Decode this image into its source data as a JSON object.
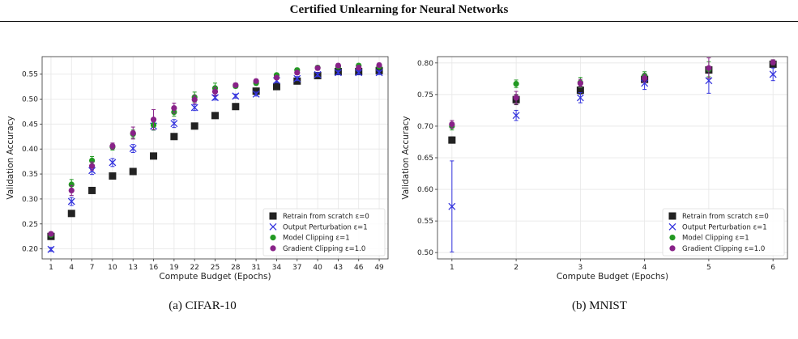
{
  "page": {
    "title": "Certified Unlearning for Neural Networks"
  },
  "captions": [
    "(a) CIFAR-10",
    "(b) MNIST"
  ],
  "chart_data": [
    {
      "type": "scatter",
      "panel": "a",
      "xlabel": "Compute Budget (Epochs)",
      "ylabel": "Validation Accuracy",
      "x": [
        1,
        4,
        7,
        10,
        13,
        16,
        19,
        22,
        25,
        28,
        31,
        34,
        37,
        40,
        43,
        46,
        49
      ],
      "xticks": [
        1,
        4,
        7,
        10,
        13,
        16,
        19,
        22,
        25,
        28,
        31,
        34,
        37,
        40,
        43,
        46,
        49
      ],
      "ylim": [
        0.18,
        0.585
      ],
      "yticks": [
        0.2,
        0.25,
        0.3,
        0.35,
        0.4,
        0.45,
        0.5,
        0.55
      ],
      "grid": true,
      "legend_position": "lower-right",
      "series": [
        {
          "name": "Retrain from scratch ε=0",
          "marker": "square",
          "color": "#222222",
          "values": [
            0.225,
            0.271,
            0.317,
            0.346,
            0.355,
            0.386,
            0.425,
            0.446,
            0.467,
            0.485,
            0.516,
            0.525,
            0.536,
            0.547,
            0.555,
            0.555,
            0.557
          ],
          "errors": [
            0.004,
            0.003,
            0.003,
            0.004,
            0.005,
            0.003,
            0.003,
            0.003,
            0.003,
            0.003,
            0.003,
            0.003,
            0.003,
            0.003,
            0.003,
            0.003,
            0.003
          ]
        },
        {
          "name": "Output Perturbation ε=1",
          "marker": "x",
          "color": "#3333dd",
          "values": [
            0.199,
            0.295,
            0.357,
            0.373,
            0.401,
            0.446,
            0.451,
            0.483,
            0.503,
            0.506,
            0.51,
            0.537,
            0.541,
            0.549,
            0.553,
            0.553,
            0.553
          ],
          "errors": [
            0.004,
            0.008,
            0.008,
            0.008,
            0.008,
            0.008,
            0.008,
            0.006,
            0.005,
            0.004,
            0.004,
            0.004,
            0.004,
            0.004,
            0.004,
            0.004,
            0.004
          ]
        },
        {
          "name": "Model Clipping ε=1",
          "marker": "circle",
          "color": "#229922",
          "values": [
            0.228,
            0.329,
            0.377,
            0.404,
            0.43,
            0.448,
            0.474,
            0.504,
            0.522,
            0.526,
            0.532,
            0.548,
            0.558,
            0.563,
            0.565,
            0.567,
            0.565
          ],
          "errors": [
            0.004,
            0.01,
            0.008,
            0.006,
            0.008,
            0.01,
            0.008,
            0.01,
            0.01,
            0.004,
            0.004,
            0.004,
            0.004,
            0.004,
            0.004,
            0.004,
            0.004
          ]
        },
        {
          "name": "Gradient Clipping ε=1.0",
          "marker": "circle",
          "color": "#882288",
          "values": [
            0.23,
            0.317,
            0.366,
            0.406,
            0.432,
            0.459,
            0.482,
            0.499,
            0.515,
            0.528,
            0.536,
            0.543,
            0.553,
            0.562,
            0.567,
            0.563,
            0.568
          ],
          "errors": [
            0.004,
            0.01,
            0.008,
            0.006,
            0.012,
            0.02,
            0.01,
            0.008,
            0.008,
            0.004,
            0.004,
            0.004,
            0.004,
            0.004,
            0.004,
            0.004,
            0.004
          ]
        }
      ]
    },
    {
      "type": "scatter",
      "panel": "b",
      "xlabel": "Compute Budget (Epochs)",
      "ylabel": "Validation Accuracy",
      "x": [
        1,
        2,
        3,
        4,
        5,
        6
      ],
      "xticks": [
        1,
        2,
        3,
        4,
        5,
        6
      ],
      "ylim": [
        0.49,
        0.81
      ],
      "yticks": [
        0.5,
        0.55,
        0.6,
        0.65,
        0.7,
        0.75,
        0.8
      ],
      "grid": true,
      "legend_position": "lower-right",
      "series": [
        {
          "name": "Retrain from scratch ε=0",
          "marker": "square",
          "color": "#222222",
          "values": [
            0.678,
            0.742,
            0.757,
            0.774,
            0.789,
            0.798
          ],
          "errors": [
            0.005,
            0.008,
            0.006,
            0.005,
            0.005,
            0.004
          ]
        },
        {
          "name": "Output Perturbation ε=1",
          "marker": "x",
          "color": "#3333dd",
          "values": [
            0.573,
            0.717,
            0.745,
            0.768,
            0.772,
            0.782
          ],
          "errors": [
            0.072,
            0.008,
            0.008,
            0.01,
            0.02,
            0.01
          ]
        },
        {
          "name": "Model Clipping ε=1",
          "marker": "circle",
          "color": "#229922",
          "values": [
            0.7,
            0.767,
            0.769,
            0.78,
            0.79,
            0.801
          ],
          "errors": [
            0.006,
            0.006,
            0.008,
            0.006,
            0.012,
            0.004
          ]
        },
        {
          "name": "Gradient Clipping ε=1.0",
          "marker": "circle",
          "color": "#882288",
          "values": [
            0.703,
            0.745,
            0.768,
            0.776,
            0.792,
            0.801
          ],
          "errors": [
            0.006,
            0.01,
            0.006,
            0.006,
            0.016,
            0.004
          ]
        }
      ]
    }
  ]
}
